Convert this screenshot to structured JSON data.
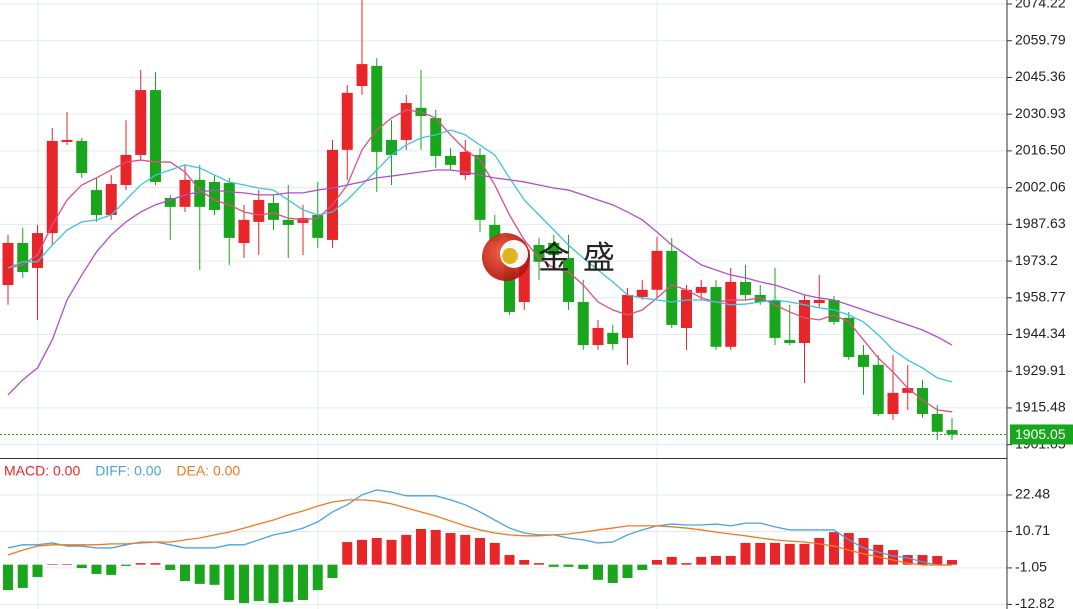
{
  "chart_data": [
    {
      "type": "candlestick",
      "ylim": [
        1895.8,
        2075.8
      ],
      "yticks": [
        2074.22,
        2059.79,
        2045.36,
        2030.93,
        {
          "value": 2016.5,
          "label": "2016.50"
        },
        2002.06,
        1987.63,
        1973.2,
        1958.77,
        1944.34,
        1929.91,
        1915.48,
        1901.05
      ],
      "grid": true,
      "up_color": "#e8262a",
      "down_color": "#19a51c",
      "open": [
        1963.8,
        1980.3,
        1970.5,
        1984.2,
        2020.0,
        2020.4,
        2001.1,
        1991.3,
        2003.1,
        2014.9,
        2040.4,
        1998.0,
        1994.5,
        2005.1,
        2004.3,
        2003.9,
        1980.3,
        1988.6,
        1996.0,
        1989.4,
        1988.2,
        1991.3,
        1981.5,
        2016.9,
        2042.0,
        2049.9,
        2020.8,
        2020.8,
        2033.4,
        2029.4,
        2014.5,
        2007.0,
        2014.9,
        1987.4,
        1980.7,
        1957.1,
        1979.5,
        1980.3,
        1974.4,
        1957.1,
        1940.2,
        1945.0,
        1943.0,
        1959.1,
        1961.9,
        1977.2,
        1946.9,
        1960.7,
        1963.0,
        1939.5,
        1965.0,
        1959.9,
        1957.9,
        1942.2,
        1941.0,
        1956.7,
        1957.9,
        1950.9,
        1936.3,
        1932.4,
        1913.1,
        1921.4,
        1923.3,
        1913.1,
        1906.8
      ],
      "high": [
        1983.5,
        1986.2,
        1987.4,
        2025.5,
        2031.8,
        2021.6,
        2005.9,
        2007.0,
        2028.6,
        2048.3,
        2047.5,
        1999.2,
        2011.0,
        2011.0,
        2007.0,
        2005.9,
        1995.3,
        2001.1,
        1999.2,
        2003.1,
        1995.3,
        2004.3,
        2020.8,
        2042.4,
        2075.8,
        2053.0,
        2028.6,
        2038.5,
        2048.3,
        2032.6,
        2017.6,
        2020.8,
        2017.6,
        1991.3,
        1983.5,
        1979.5,
        1982.3,
        1983.5,
        1983.5,
        1965.8,
        1950.1,
        1948.1,
        1962.6,
        1965.8,
        1982.7,
        1982.3,
        1963.8,
        1965.8,
        1965.8,
        1970.5,
        1971.7,
        1963.8,
        1970.5,
        1956.0,
        1959.9,
        1967.7,
        1959.5,
        1953.2,
        1940.2,
        1936.3,
        1936.3,
        1932.4,
        1926.5,
        1916.7,
        1911.6
      ],
      "low": [
        1956.0,
        1966.6,
        1950.1,
        1979.5,
        2018.8,
        2005.9,
        1988.6,
        1989.4,
        2001.1,
        2012.9,
        2003.1,
        1981.5,
        1992.5,
        1969.7,
        1991.3,
        1971.7,
        1974.4,
        1975.6,
        1985.4,
        1974.4,
        1975.6,
        1978.4,
        1978.4,
        2005.1,
        2038.5,
        2000.4,
        2003.1,
        2016.9,
        2016.9,
        2009.8,
        2009.0,
        2005.1,
        1984.6,
        1973.6,
        1952.0,
        1954.0,
        1965.8,
        1969.7,
        1954.0,
        1938.3,
        1938.3,
        1938.3,
        1932.4,
        1957.9,
        1958.7,
        1946.9,
        1938.3,
        1957.9,
        1938.3,
        1938.3,
        1957.9,
        1956.0,
        1940.2,
        1940.2,
        1925.3,
        1954.8,
        1948.1,
        1934.3,
        1920.6,
        1912.3,
        1910.8,
        1914.7,
        1911.6,
        1902.9,
        1902.9
      ],
      "close": [
        1980.3,
        1968.9,
        1984.2,
        2020.4,
        2020.8,
        2007.8,
        1991.3,
        2003.5,
        2014.9,
        2040.4,
        2004.3,
        1994.5,
        2005.1,
        1994.5,
        1993.3,
        1982.3,
        1989.4,
        1997.2,
        1989.4,
        1987.4,
        1990.1,
        1982.3,
        2016.9,
        2039.3,
        2050.6,
        2016.1,
        2014.9,
        2035.3,
        2030.2,
        2014.5,
        2011.0,
        2016.1,
        1989.4,
        1980.7,
        1953.2,
        1977.6,
        1972.9,
        1975.6,
        1957.1,
        1940.2,
        1946.9,
        1940.6,
        1959.9,
        1961.9,
        1977.2,
        1948.1,
        1961.9,
        1963.0,
        1939.5,
        1965.0,
        1959.9,
        1957.1,
        1943.0,
        1941.0,
        1957.9,
        1957.9,
        1949.3,
        1935.5,
        1931.6,
        1913.1,
        1921.4,
        1923.3,
        1913.1,
        1906.1,
        1905.05
      ],
      "series": [
        {
          "color": "#e0507e",
          "values": [
            1970.5,
            1971.7,
            1975.6,
            1987.4,
            1997.2,
            2003.1,
            2005.9,
            2009.0,
            2012.1,
            2012.9,
            2012.1,
            2012.1,
            2008.2,
            2001.1,
            1997.2,
            1995.3,
            1992.5,
            1991.3,
            1992.1,
            1990.1,
            1989.4,
            1990.1,
            1995.3,
            2003.1,
            2016.9,
            2024.7,
            2029.4,
            2032.6,
            2031.8,
            2029.4,
            2022.8,
            2016.9,
            2012.9,
            2003.1,
            1991.3,
            1981.5,
            1974.4,
            1970.5,
            1968.9,
            1963.8,
            1957.1,
            1954.0,
            1952.0,
            1954.0,
            1958.7,
            1963.8,
            1961.9,
            1958.7,
            1957.1,
            1957.9,
            1957.9,
            1958.7,
            1956.0,
            1953.2,
            1950.9,
            1950.1,
            1952.0,
            1949.3,
            1942.2,
            1935.1,
            1929.6,
            1923.3,
            1918.6,
            1914.7,
            1913.9
          ]
        },
        {
          "color": "#3fc4df",
          "values": [
            1970.5,
            1972.9,
            1972.9,
            1979.5,
            1985.4,
            1988.6,
            1989.4,
            1991.3,
            1997.2,
            2003.1,
            2007.0,
            2009.0,
            2011.0,
            2009.8,
            2007.0,
            2004.3,
            2003.1,
            2001.9,
            2001.1,
            1997.2,
            1993.3,
            1991.3,
            1992.5,
            1997.2,
            2003.1,
            2009.0,
            2014.9,
            2018.8,
            2021.6,
            2022.8,
            2024.7,
            2022.8,
            2018.8,
            2014.9,
            2005.9,
            1997.2,
            1991.3,
            1985.4,
            1979.5,
            1974.4,
            1969.7,
            1965.0,
            1959.9,
            1958.7,
            1957.9,
            1957.1,
            1957.9,
            1957.9,
            1957.1,
            1956.0,
            1956.3,
            1957.1,
            1957.9,
            1957.1,
            1956.0,
            1954.8,
            1954.0,
            1952.0,
            1949.3,
            1944.2,
            1938.3,
            1934.3,
            1931.2,
            1927.3,
            1925.7
          ]
        },
        {
          "color": "#b24fc9",
          "values": [
            1920.6,
            1926.5,
            1931.2,
            1942.2,
            1957.9,
            1967.7,
            1976.8,
            1983.5,
            1988.6,
            1992.5,
            1995.3,
            1997.2,
            1999.2,
            2000.4,
            2001.1,
            2000.4,
            2000.0,
            1999.2,
            1999.2,
            2000.0,
            2000.0,
            2001.1,
            2001.9,
            2003.1,
            2004.3,
            2005.9,
            2006.6,
            2007.4,
            2008.2,
            2009.0,
            2009.0,
            2008.2,
            2007.0,
            2005.9,
            2005.1,
            2004.3,
            2003.1,
            2001.9,
            2001.1,
            1999.2,
            1997.2,
            1995.3,
            1992.5,
            1989.4,
            1984.6,
            1979.5,
            1975.6,
            1971.7,
            1969.7,
            1967.7,
            1966.6,
            1965.0,
            1963.8,
            1961.9,
            1959.9,
            1958.7,
            1957.9,
            1956.0,
            1954.0,
            1952.0,
            1950.1,
            1948.1,
            1946.1,
            1943.4,
            1940.2
          ]
        }
      ],
      "last_price": 1905.05,
      "last_price_color": "#19a51c",
      "watermark": "金 盛"
    },
    {
      "type": "macd",
      "ylim": [
        -14.3,
        34.4
      ],
      "yticks": [
        22.48,
        10.71,
        -1.05,
        -12.82
      ],
      "grid": true,
      "series": [
        {
          "name": "MACD: 0.00",
          "color": "#e8262a",
          "down_color": "#19a51c",
          "values": [
            -8.2,
            -7.5,
            -4.0,
            0.2,
            0.2,
            -1.1,
            -3.0,
            -3.3,
            -0.4,
            0.5,
            0.5,
            -1.7,
            -5.3,
            -6.2,
            -6.5,
            -11.4,
            -12.4,
            -11.7,
            -12.4,
            -12.0,
            -11.4,
            -8.2,
            -4.3,
            7.3,
            8.0,
            8.6,
            8.0,
            9.6,
            11.5,
            11.2,
            10.2,
            9.6,
            8.6,
            7.0,
            3.1,
            1.5,
            0.5,
            -0.7,
            -0.7,
            -1.4,
            -4.9,
            -5.9,
            -4.3,
            -1.7,
            1.5,
            2.5,
            0.5,
            2.5,
            2.8,
            2.8,
            7.0,
            7.0,
            7.0,
            6.7,
            6.7,
            8.6,
            10.5,
            10.2,
            8.6,
            6.4,
            4.7,
            3.1,
            3.1,
            2.8,
            1.5
          ]
        },
        {
          "name": "DIFF: 0.00",
          "color": "#4aa3e0",
          "values": [
            5.4,
            6.4,
            6.4,
            7.0,
            6.0,
            6.0,
            5.4,
            5.4,
            6.4,
            7.3,
            7.3,
            6.4,
            5.4,
            5.4,
            5.4,
            6.4,
            6.4,
            8.0,
            9.6,
            10.5,
            11.8,
            13.8,
            17.0,
            19.3,
            22.5,
            24.1,
            23.4,
            22.2,
            22.2,
            22.2,
            20.9,
            19.3,
            17.0,
            14.4,
            11.8,
            10.2,
            9.6,
            9.6,
            8.6,
            8.0,
            7.0,
            7.3,
            9.6,
            11.2,
            12.5,
            13.1,
            12.8,
            12.8,
            13.1,
            12.5,
            13.4,
            13.4,
            12.2,
            11.2,
            11.2,
            11.2,
            11.2,
            8.0,
            5.4,
            4.1,
            2.8,
            2.2,
            0.9,
            -0.1,
            -0.1
          ]
        },
        {
          "name": "DEA: 0.00",
          "color": "#f07a22",
          "values": [
            3.1,
            4.7,
            6.0,
            6.4,
            6.4,
            6.4,
            6.4,
            6.7,
            6.7,
            7.0,
            7.3,
            7.3,
            8.0,
            8.6,
            9.6,
            10.5,
            11.8,
            13.1,
            14.4,
            16.0,
            17.3,
            18.9,
            20.2,
            20.9,
            20.9,
            20.5,
            19.6,
            18.3,
            17.0,
            15.7,
            14.1,
            12.5,
            11.2,
            10.2,
            9.6,
            9.3,
            9.3,
            9.6,
            9.9,
            10.5,
            11.2,
            11.8,
            12.5,
            12.5,
            12.5,
            12.2,
            11.8,
            11.2,
            10.5,
            9.9,
            9.3,
            8.6,
            8.0,
            7.6,
            7.3,
            6.7,
            6.0,
            4.7,
            3.5,
            2.5,
            1.5,
            0.5,
            -0.1,
            -0.1,
            -0.1
          ]
        }
      ]
    }
  ]
}
